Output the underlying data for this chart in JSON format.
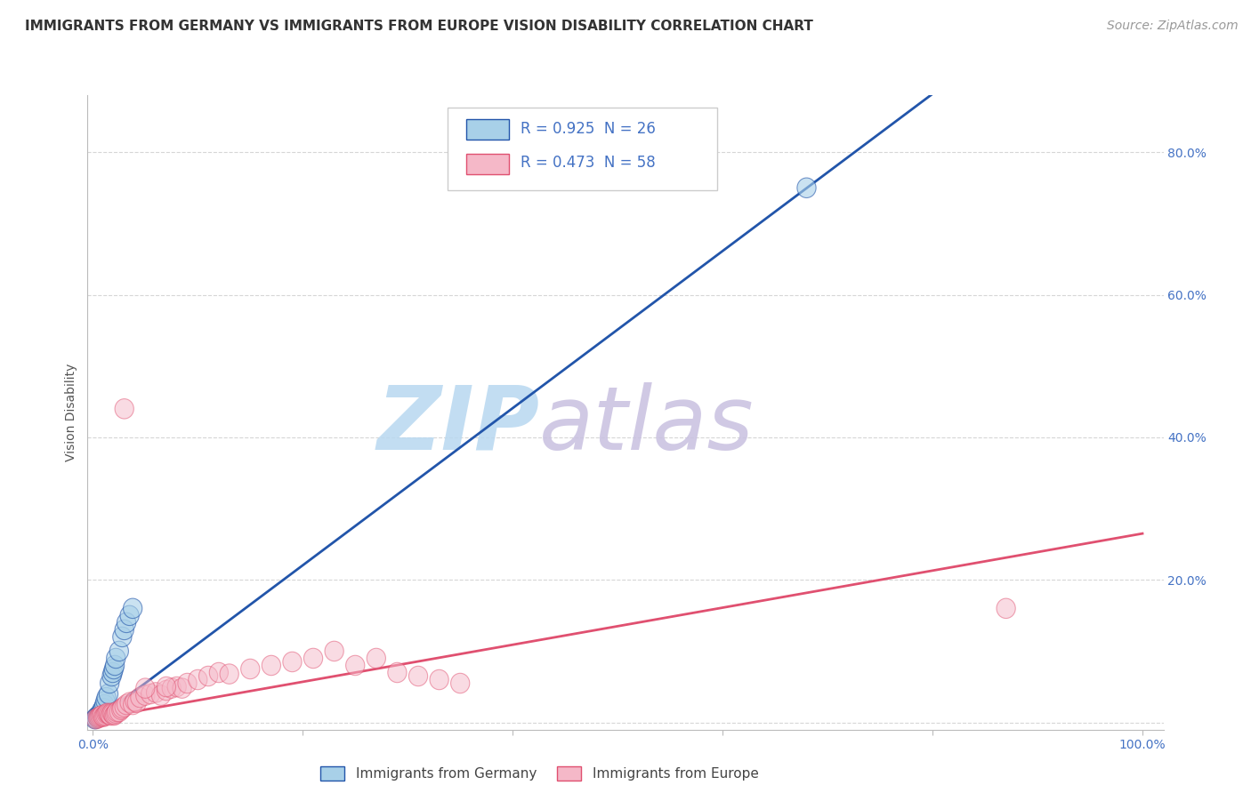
{
  "title": "IMMIGRANTS FROM GERMANY VS IMMIGRANTS FROM EUROPE VISION DISABILITY CORRELATION CHART",
  "source": "Source: ZipAtlas.com",
  "ylabel": "Vision Disability",
  "legend_label_blue": "Immigrants from Germany",
  "legend_label_pink": "Immigrants from Europe",
  "R_blue": 0.925,
  "N_blue": 26,
  "R_pink": 0.473,
  "N_pink": 58,
  "color_blue": "#a8d0e8",
  "color_pink": "#f5b8c8",
  "line_color_blue": "#2255aa",
  "line_color_pink": "#e05070",
  "background_color": "#ffffff",
  "grid_color": "#cccccc",
  "watermark_zip": "ZIP",
  "watermark_atlas": "atlas",
  "watermark_color_zip": "#c8e4f5",
  "watermark_color_atlas": "#d0c8e8",
  "xlim": [
    -0.005,
    1.02
  ],
  "ylim": [
    -0.01,
    0.88
  ],
  "xtick_positions": [
    0.0,
    0.2,
    0.4,
    0.6,
    0.8,
    1.0
  ],
  "xtick_labels": [
    "0.0%",
    "",
    "",
    "",
    "",
    "100.0%"
  ],
  "ytick_positions": [
    0.0,
    0.2,
    0.4,
    0.6,
    0.8
  ],
  "ytick_labels_right": [
    "",
    "20.0%",
    "40.0%",
    "60.0%",
    "80.0%"
  ],
  "blue_x": [
    0.002,
    0.003,
    0.004,
    0.005,
    0.006,
    0.007,
    0.008,
    0.009,
    0.01,
    0.011,
    0.012,
    0.013,
    0.015,
    0.016,
    0.018,
    0.019,
    0.02,
    0.021,
    0.022,
    0.025,
    0.028,
    0.03,
    0.032,
    0.035,
    0.038,
    0.68
  ],
  "blue_y": [
    0.005,
    0.006,
    0.008,
    0.009,
    0.01,
    0.012,
    0.015,
    0.018,
    0.02,
    0.025,
    0.03,
    0.035,
    0.04,
    0.055,
    0.065,
    0.07,
    0.075,
    0.08,
    0.09,
    0.1,
    0.12,
    0.13,
    0.14,
    0.15,
    0.16,
    0.75
  ],
  "pink_x": [
    0.003,
    0.005,
    0.006,
    0.007,
    0.008,
    0.009,
    0.01,
    0.011,
    0.012,
    0.013,
    0.014,
    0.015,
    0.016,
    0.017,
    0.018,
    0.019,
    0.02,
    0.021,
    0.022,
    0.023,
    0.025,
    0.027,
    0.028,
    0.03,
    0.032,
    0.035,
    0.038,
    0.04,
    0.042,
    0.045,
    0.05,
    0.055,
    0.06,
    0.065,
    0.07,
    0.075,
    0.08,
    0.085,
    0.09,
    0.1,
    0.11,
    0.12,
    0.13,
    0.15,
    0.17,
    0.19,
    0.21,
    0.23,
    0.25,
    0.27,
    0.29,
    0.31,
    0.33,
    0.35,
    0.03,
    0.05,
    0.07,
    0.87
  ],
  "pink_y": [
    0.005,
    0.006,
    0.007,
    0.008,
    0.009,
    0.01,
    0.008,
    0.009,
    0.01,
    0.012,
    0.013,
    0.012,
    0.011,
    0.01,
    0.013,
    0.012,
    0.01,
    0.011,
    0.013,
    0.015,
    0.015,
    0.018,
    0.02,
    0.022,
    0.025,
    0.028,
    0.025,
    0.03,
    0.028,
    0.035,
    0.038,
    0.04,
    0.042,
    0.038,
    0.045,
    0.048,
    0.05,
    0.048,
    0.055,
    0.06,
    0.065,
    0.07,
    0.068,
    0.075,
    0.08,
    0.085,
    0.09,
    0.1,
    0.08,
    0.09,
    0.07,
    0.065,
    0.06,
    0.055,
    0.44,
    0.048,
    0.05,
    0.16
  ],
  "blue_line": [
    [
      0.0,
      0.88
    ],
    [
      0.0,
      0.97
    ]
  ],
  "pink_line": [
    [
      0.0,
      1.0
    ],
    [
      0.005,
      0.265
    ]
  ],
  "title_fontsize": 11,
  "tick_fontsize": 10,
  "legend_fontsize": 12,
  "source_fontsize": 10
}
